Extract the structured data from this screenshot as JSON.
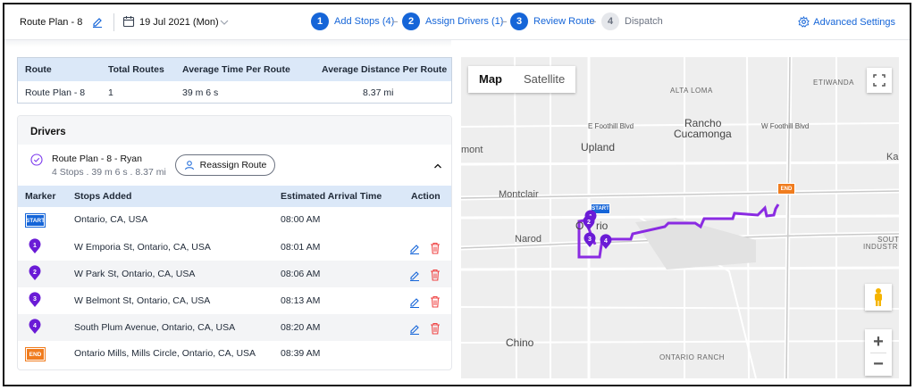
{
  "header": {
    "plan_name": "Route Plan - 8",
    "date": "19 Jul 2021 (Mon)",
    "steps": [
      {
        "num": "1",
        "label": "Add Stops (4)"
      },
      {
        "num": "2",
        "label": "Assign Drivers (1)"
      },
      {
        "num": "3",
        "label": "Review Route"
      },
      {
        "num": "4",
        "label": "Dispatch"
      }
    ],
    "advanced_settings": "Advanced Settings"
  },
  "summary": {
    "headers": [
      "Route",
      "Total Routes",
      "Average Time Per Route",
      "Average Distance Per Route"
    ],
    "row": [
      "Route Plan - 8",
      "1",
      "39 m 6 s",
      "8.37 mi"
    ]
  },
  "drivers": {
    "title": "Drivers",
    "route_name": "Route Plan - 8 - Ryan",
    "route_meta": "4 Stops . 39 m 6 s . 8.37 mi",
    "reassign_label": "Reassign Route",
    "table_headers": [
      "Marker",
      "Stops Added",
      "Estimated Arrival Time",
      "Action"
    ],
    "stops": [
      {
        "marker": "START",
        "address": "Ontario, CA, USA",
        "time": "08:00 AM"
      },
      {
        "marker": "1",
        "address": "W Emporia St, Ontario, CA, USA",
        "time": "08:01 AM"
      },
      {
        "marker": "2",
        "address": "W Park St, Ontario, CA, USA",
        "time": "08:06 AM"
      },
      {
        "marker": "3",
        "address": "W Belmont St, Ontario, CA, USA",
        "time": "08:13 AM"
      },
      {
        "marker": "4",
        "address": "South Plum Avenue, Ontario, CA, USA",
        "time": "08:20 AM"
      },
      {
        "marker": "END",
        "address": "Ontario Mills, Mills Circle, Ontario, CA, USA",
        "time": "08:39 AM"
      }
    ]
  },
  "map": {
    "tabs": [
      "Map",
      "Satellite"
    ],
    "labels": {
      "alta_loma": "ALTA LOMA",
      "etiwanda": "ETIWANDA",
      "foothill_w": "E Foothill Blvd",
      "foothill_e": "W Foothill Blvd",
      "rancho": "Rancho",
      "cucamonga": "Cucamonga",
      "upland": "Upland",
      "mont": "mont",
      "kai": "Kai",
      "montclair": "Montclair",
      "ontario_a": "O",
      "ontario_b": "rio",
      "narod": "Narod",
      "south": "SOUTH",
      "indus": "INDUSTR",
      "chino": "Chino",
      "ontario_ranch": "ONTARIO RANCH"
    },
    "start_marker": "START",
    "end_marker": "END",
    "pins": [
      "1",
      "2",
      "3",
      "4"
    ],
    "zoom_in": "+",
    "zoom_out": "−"
  },
  "colors": {
    "accent": "#1565d8",
    "route": "#8a2be2",
    "pin": "#6a1bd6",
    "start": "#1565d8",
    "end": "#f07c1e",
    "delete": "#ef4444"
  }
}
